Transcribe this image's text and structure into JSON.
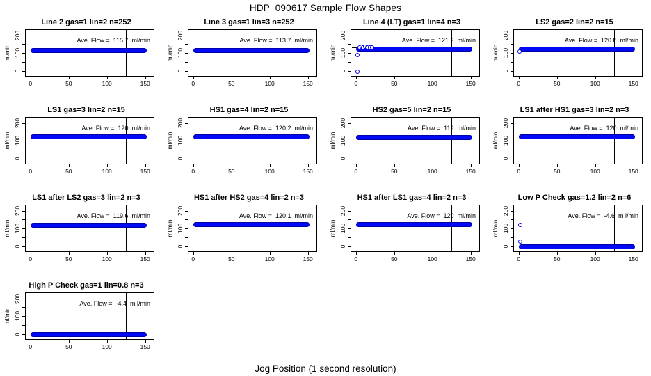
{
  "chart_data": {
    "type": "scatter",
    "title": "HDP_090617  Sample Flow Shapes",
    "xlabel": "Jog Position (1 second resolution)",
    "ylabel": "ml/min",
    "xlim": [
      0,
      155
    ],
    "ylim": [
      -20,
      220
    ],
    "x_ticks": [
      0,
      50,
      100,
      150
    ],
    "y_tick_marks": [
      0,
      50,
      100,
      150,
      200
    ],
    "y_tick_labels": [
      0,
      100,
      200
    ],
    "vline_x": 125,
    "band_x_range": [
      0,
      152
    ],
    "point_color": "#0000ff",
    "grid_on": false,
    "panels": [
      {
        "title": "Line 2 gas=1 lin=2 n=252",
        "ave_flow": 115.7,
        "band_y": 115.7,
        "annotation": "Ave. Flow =  115.7  ml/min",
        "outliers": []
      },
      {
        "title": "Line 3 gas=1 lin=3 n=252",
        "ave_flow": 113.7,
        "band_y": 113.7,
        "annotation": "Ave. Flow =  113.7  ml/min",
        "outliers": []
      },
      {
        "title": "Line 4 (LT) gas=1 lin=4 n=3",
        "ave_flow": 121.9,
        "band_y": 121.9,
        "annotation": "Ave. Flow =  121.9  ml/min",
        "outliers": [
          [
            2,
            -5
          ],
          [
            2,
            88
          ],
          [
            5,
            131
          ],
          [
            7,
            134
          ],
          [
            9,
            133
          ],
          [
            12,
            134
          ],
          [
            15,
            133
          ],
          [
            18,
            131
          ],
          [
            21,
            130
          ]
        ],
        "hseg": {
          "y": 131,
          "x1": -5,
          "x2": 24
        }
      },
      {
        "title": "LS2 gas=2 lin=2 n=15",
        "ave_flow": 120.8,
        "band_y": 120.8,
        "annotation": "Ave. Flow =  120.8  ml/min",
        "outliers": [
          [
            1,
            107
          ]
        ]
      },
      {
        "title": "LS1 gas=3 lin=2 n=15",
        "ave_flow": 120,
        "band_y": 120,
        "annotation": "Ave. Flow =  120  ml/min",
        "outliers": []
      },
      {
        "title": "HS1 gas=4 lin=2 n=15",
        "ave_flow": 120.2,
        "band_y": 120.2,
        "annotation": "Ave. Flow =  120.2  ml/min",
        "outliers": []
      },
      {
        "title": "HS2 gas=5 lin=2 n=15",
        "ave_flow": 119,
        "band_y": 119,
        "annotation": "Ave. Flow =  119  ml/min",
        "outliers": []
      },
      {
        "title": "LS1 after HS1 gas=3 lin=2 n=3",
        "ave_flow": 120,
        "band_y": 120,
        "annotation": "Ave. Flow =  120  ml/min",
        "outliers": []
      },
      {
        "title": "LS1 after LS2 gas=3 lin=2 n=3",
        "ave_flow": 119.6,
        "band_y": 119.6,
        "annotation": "Ave. Flow =  119.6  ml/min",
        "outliers": []
      },
      {
        "title": "HS1 after HS2 gas=4 lin=2 n=3",
        "ave_flow": 120.1,
        "band_y": 120.1,
        "annotation": "Ave. Flow =  120.1  ml/min",
        "outliers": []
      },
      {
        "title": "HS1 after LS1 gas=4 lin=2 n=3",
        "ave_flow": 120,
        "band_y": 120,
        "annotation": "Ave. Flow =  120  ml/min",
        "outliers": []
      },
      {
        "title": "Low P Check gas=1.2 lin=2 n=6",
        "ave_flow": -4.6,
        "band_y": -4.6,
        "annotation": "Ave. Flow =  -4.6  m l/min",
        "outliers": [
          [
            2,
            120
          ],
          [
            2,
            25
          ]
        ]
      },
      {
        "title": "High P Check gas=1 lin=0.8 n=3",
        "ave_flow": -4.4,
        "band_y": -4.4,
        "annotation": "Ave. Flow =  -4.4  m l/min",
        "outliers": []
      }
    ]
  }
}
